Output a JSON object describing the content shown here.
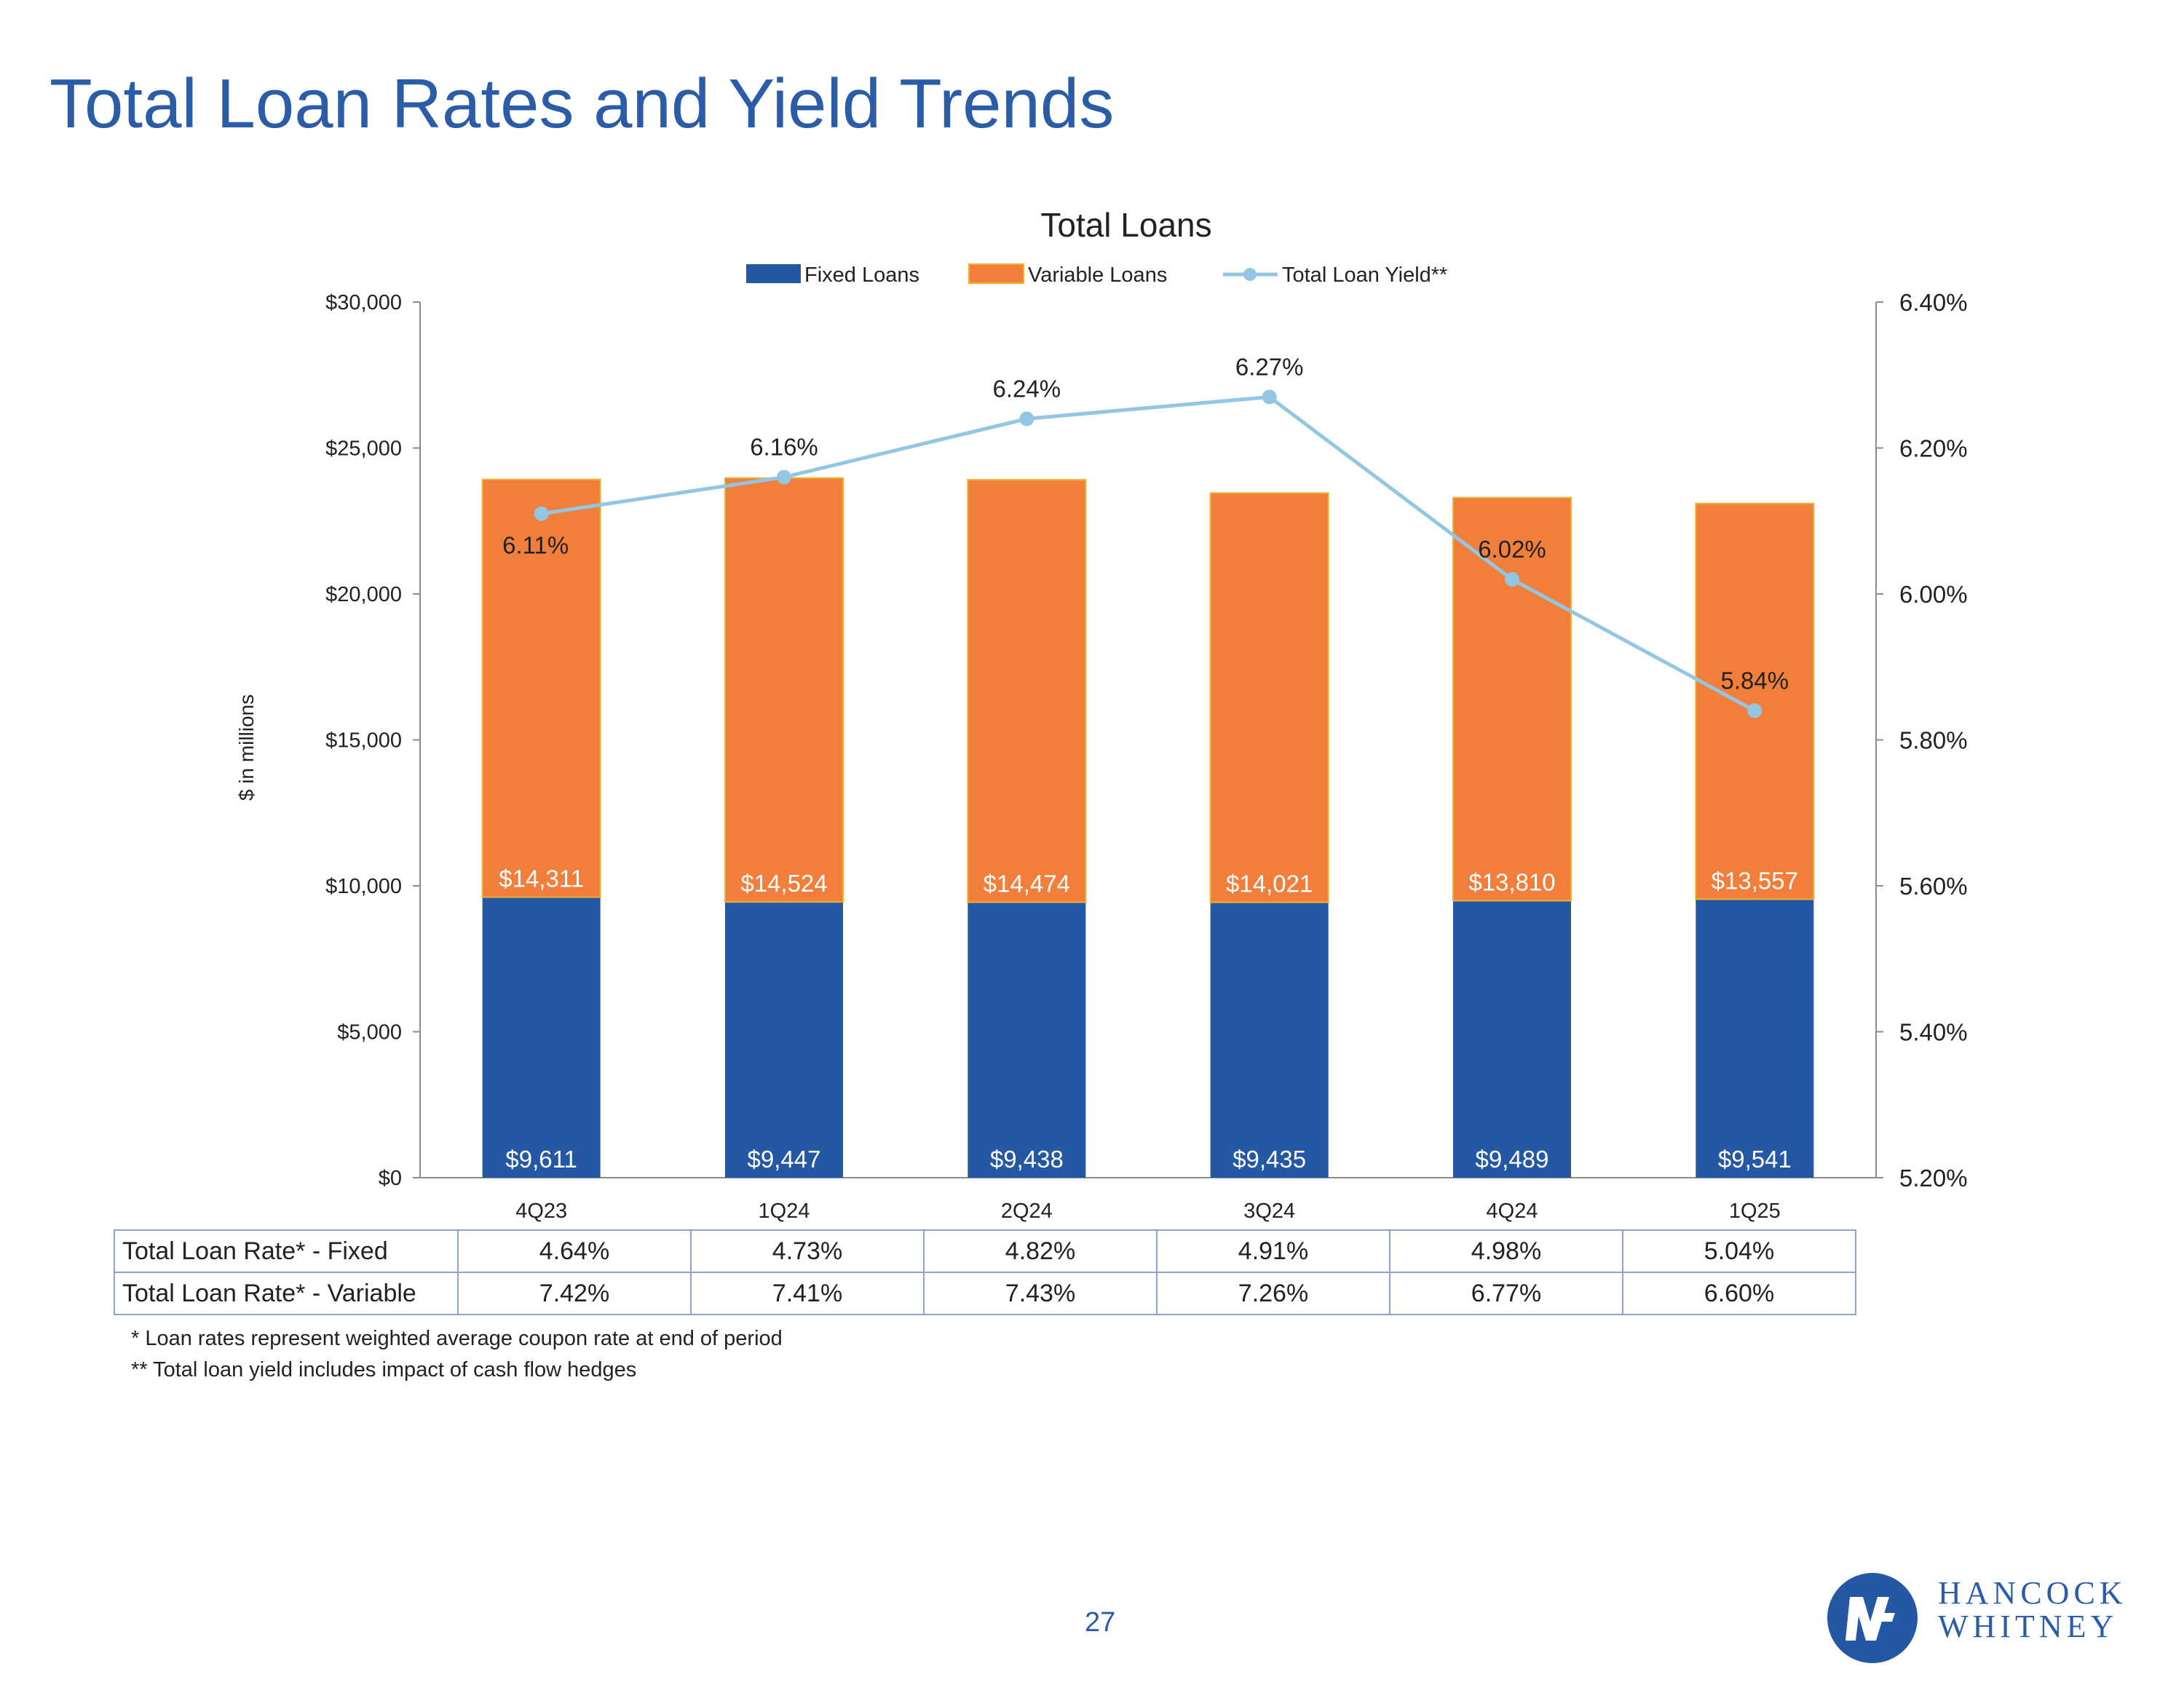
{
  "page": {
    "title": "Total Loan Rates and Yield Trends",
    "page_number": "27"
  },
  "colors": {
    "title": "#2A5CA8",
    "fixed": "#2457A4",
    "variable": "#F17F3B",
    "variable_border": "#F0B030",
    "yield_line": "#92C6E2",
    "axis": "#8C8C8C"
  },
  "chart_data": {
    "type": "bar",
    "stacked": true,
    "title": "Total Loans",
    "ylabel": "$ in millions",
    "categories": [
      "4Q23",
      "1Q24",
      "2Q24",
      "3Q24",
      "4Q24",
      "1Q25"
    ],
    "ylim": [
      0,
      30000
    ],
    "yticks": [
      0,
      5000,
      10000,
      15000,
      20000,
      25000,
      30000
    ],
    "ytick_labels": [
      "$0",
      "$5,000",
      "$10,000",
      "$15,000",
      "$20,000",
      "$25,000",
      "$30,000"
    ],
    "y2lim": [
      5.2,
      6.4
    ],
    "y2ticks": [
      5.2,
      5.4,
      5.6,
      5.8,
      6.0,
      6.2,
      6.4
    ],
    "y2tick_labels": [
      "5.20%",
      "5.40%",
      "5.60%",
      "5.80%",
      "6.00%",
      "6.20%",
      "6.40%"
    ],
    "legend_position": "top-center",
    "grid": false,
    "series": [
      {
        "name": "Fixed Loans",
        "type": "bar",
        "axis": "left",
        "values": [
          9611,
          9447,
          9438,
          9435,
          9489,
          9541
        ],
        "labels": [
          "$9,611",
          "$9,447",
          "$9,438",
          "$9,435",
          "$9,489",
          "$9,541"
        ]
      },
      {
        "name": "Variable Loans",
        "type": "bar",
        "axis": "left",
        "values": [
          14311,
          14524,
          14474,
          14021,
          13810,
          13557
        ],
        "labels": [
          "$14,311",
          "$14,524",
          "$14,474",
          "$14,021",
          "$13,810",
          "$13,557"
        ]
      },
      {
        "name": "Total Loan Yield**",
        "type": "line",
        "axis": "right",
        "values": [
          6.11,
          6.16,
          6.24,
          6.27,
          6.02,
          5.84
        ],
        "labels": [
          "6.11%",
          "6.16%",
          "6.24%",
          "6.27%",
          "6.02%",
          "5.84%"
        ]
      }
    ]
  },
  "rate_table": {
    "rows": [
      {
        "label": "Total Loan Rate* - Fixed",
        "values": [
          "4.64%",
          "4.73%",
          "4.82%",
          "4.91%",
          "4.98%",
          "5.04%"
        ]
      },
      {
        "label": "Total Loan Rate* - Variable",
        "values": [
          "7.42%",
          "7.41%",
          "7.43%",
          "7.26%",
          "6.77%",
          "6.60%"
        ]
      }
    ]
  },
  "footnotes": [
    "* Loan rates represent weighted average coupon rate at end of period",
    "** Total loan yield includes impact of cash flow hedges"
  ],
  "logo": {
    "line1": "HANCOCK",
    "line2": "WHITNEY"
  }
}
